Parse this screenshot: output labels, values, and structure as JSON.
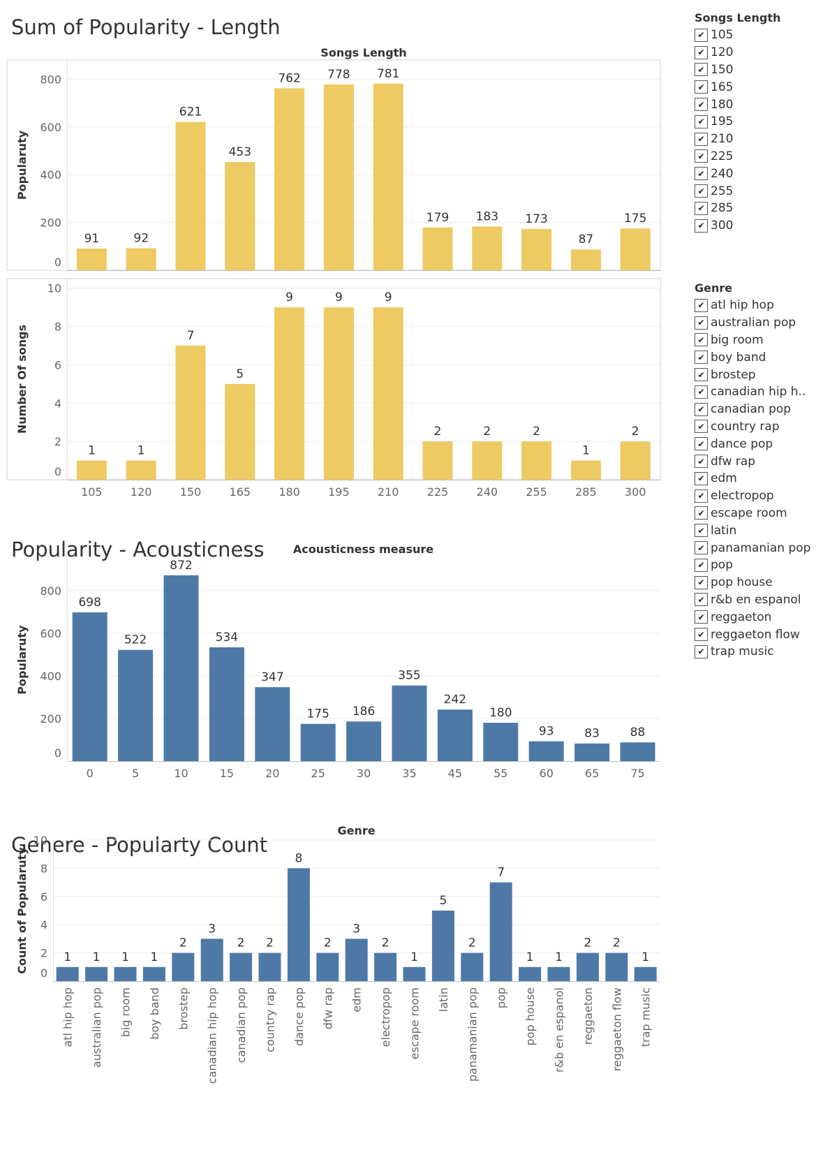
{
  "titles": {
    "length": "Sum of Popularity - Length",
    "acousticness": "Popularity - Acousticness",
    "genre": "Genere - Popularty Count"
  },
  "legends": {
    "length": {
      "title": "Songs Length",
      "items": [
        "105",
        "120",
        "150",
        "165",
        "180",
        "195",
        "210",
        "225",
        "240",
        "255",
        "285",
        "300"
      ]
    },
    "genre": {
      "title": "Genre",
      "items": [
        "atl hip hop",
        "australian pop",
        "big room",
        "boy band",
        "brostep",
        "canadian hip h..",
        "canadian pop",
        "country rap",
        "dance pop",
        "dfw rap",
        "edm",
        "electropop",
        "escape room",
        "latin",
        "panamanian pop",
        "pop",
        "pop house",
        "r&b en espanol",
        "reggaeton",
        "reggaeton flow",
        "trap music"
      ]
    },
    "check_glyph": "✔"
  },
  "colors": {
    "gold": "#EDCA62",
    "blue": "#4E79A7"
  },
  "chart_data": [
    {
      "type": "bar",
      "header": "Songs Length",
      "categories": [
        "105",
        "120",
        "150",
        "165",
        "180",
        "195",
        "210",
        "225",
        "240",
        "255",
        "285",
        "300"
      ],
      "values": [
        91,
        92,
        621,
        453,
        762,
        778,
        781,
        179,
        183,
        173,
        87,
        175
      ],
      "ylabel": "Popularuty",
      "ylim": [
        0,
        880
      ],
      "yticks": [
        0,
        200,
        400,
        600,
        800
      ],
      "grid": true,
      "color": "#EDCA62"
    },
    {
      "type": "bar",
      "categories": [
        "105",
        "120",
        "150",
        "165",
        "180",
        "195",
        "210",
        "225",
        "240",
        "255",
        "285",
        "300"
      ],
      "values": [
        1,
        1,
        7,
        5,
        9,
        9,
        9,
        2,
        2,
        2,
        1,
        2
      ],
      "ylabel": "Number Of songs",
      "ylim": [
        0,
        10.5
      ],
      "yticks": [
        0,
        2,
        4,
        6,
        8,
        10
      ],
      "grid": true,
      "color": "#EDCA62"
    },
    {
      "type": "bar",
      "header": "Acousticness measure",
      "categories": [
        "0",
        "5",
        "10",
        "15",
        "20",
        "25",
        "30",
        "35",
        "45",
        "55",
        "60",
        "65",
        "75"
      ],
      "values": [
        698,
        522,
        872,
        534,
        347,
        175,
        186,
        355,
        242,
        180,
        93,
        83,
        88
      ],
      "ylabel": "Popularuty",
      "ylim": [
        0,
        950
      ],
      "yticks": [
        0,
        200,
        400,
        600,
        800
      ],
      "grid": true,
      "color": "#4E79A7"
    },
    {
      "type": "bar",
      "header": "Genre",
      "categories": [
        "atl hip hop",
        "australian pop",
        "big room",
        "boy band",
        "brostep",
        "canadian hip hop",
        "canadian pop",
        "country rap",
        "dance pop",
        "dfw rap",
        "edm",
        "electropop",
        "escape room",
        "latin",
        "panamanian pop",
        "pop",
        "pop house",
        "r&b en espanol",
        "reggaeton",
        "reggaeton flow",
        "trap music"
      ],
      "values": [
        1,
        1,
        1,
        1,
        2,
        3,
        2,
        2,
        8,
        2,
        3,
        2,
        1,
        5,
        2,
        7,
        1,
        1,
        2,
        2,
        1
      ],
      "ylabel": "Count of Popularuty",
      "ylim": [
        0,
        10
      ],
      "yticks": [
        0,
        2,
        4,
        6,
        8,
        10
      ],
      "grid": true,
      "color": "#4E79A7"
    }
  ]
}
